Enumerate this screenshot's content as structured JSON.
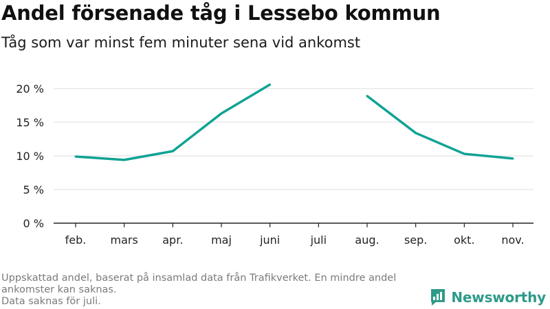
{
  "title": "Andel försenade tåg i Lessebo kommun",
  "subtitle": "Tåg som var minst fem minuter sena vid ankomst",
  "chart_data": {
    "type": "line",
    "categories": [
      "feb.",
      "mars",
      "apr.",
      "maj",
      "juni",
      "juli",
      "aug.",
      "sep.",
      "okt.",
      "nov."
    ],
    "series": [
      {
        "values": [
          9.9,
          9.4,
          10.7,
          16.3,
          20.6,
          null,
          18.9,
          13.4,
          10.3,
          9.6
        ]
      }
    ],
    "yticks": [
      "0 %",
      "5 %",
      "10 %",
      "15 %",
      "20 %"
    ],
    "ylim": [
      0,
      20
    ],
    "grid": true,
    "line_color": "#0fa394"
  },
  "footer": {
    "note_line1": "Uppskattad andel, baserat på insamlad data från Trafikverket. En mindre andel ankomster kan saknas.",
    "note_line2": "Data saknas för juli.",
    "brand": "Newsworthy",
    "brand_color": "#2e9a89"
  }
}
